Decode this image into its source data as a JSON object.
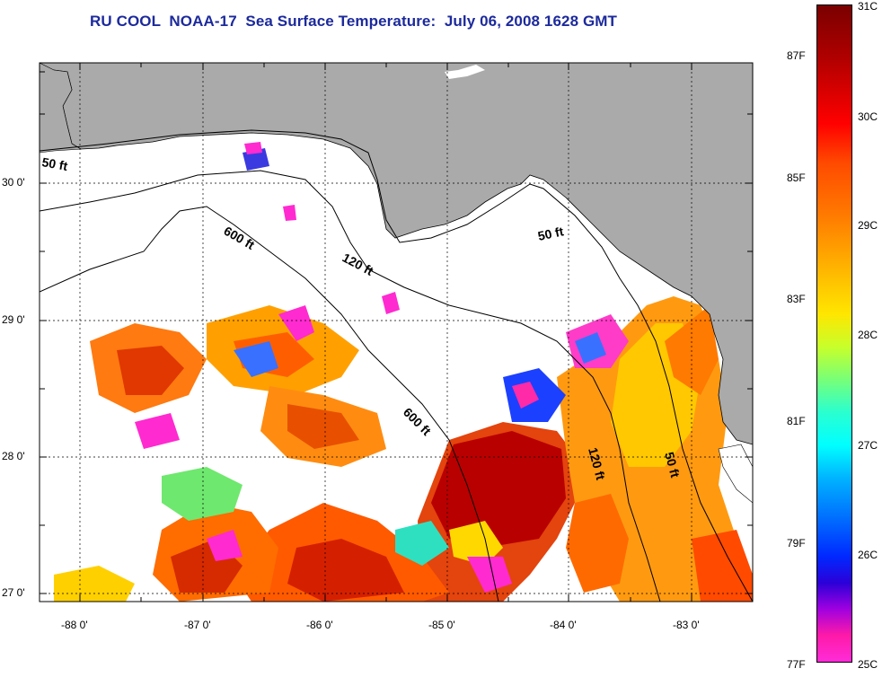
{
  "title": "RU COOL  NOAA-17  Sea Surface Temperature:  July 06, 2008 1628 GMT",
  "map": {
    "lat_labels": [
      "30 0'",
      "29 0'",
      "28 0'",
      "27 0'"
    ],
    "lon_labels": [
      "-88 0'",
      "-87 0'",
      "-86 0'",
      "-85 0'",
      "-84 0'",
      "-83 0'"
    ],
    "contour_labels": [
      "50 ft",
      "600 ft",
      "120 ft",
      "50 ft",
      "600 ft",
      "120 ft",
      "50 ft"
    ],
    "colors": {
      "land": "#aaaaaa",
      "water": "#ffffff",
      "grid": "#000000"
    }
  },
  "colorbar": {
    "celsius": [
      "31C",
      "30C",
      "29C",
      "28C",
      "27C",
      "26C",
      "25C"
    ],
    "fahrenheit": [
      "87F",
      "85F",
      "83F",
      "81F",
      "79F",
      "77F"
    ]
  }
}
